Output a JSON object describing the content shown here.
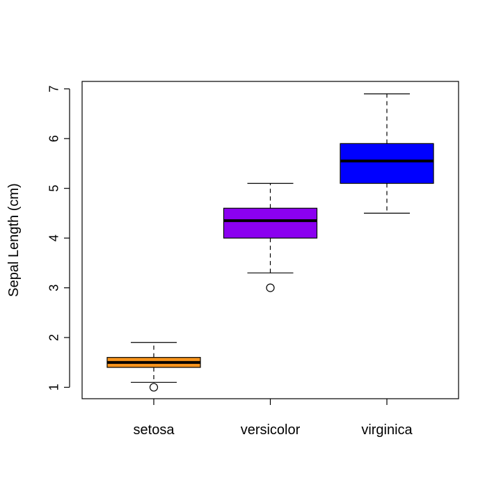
{
  "chart_data": {
    "type": "box",
    "ylabel": "Sepal Length (cm)",
    "xlabel": "",
    "ylim": [
      0.77,
      7.15
    ],
    "yticks": [
      1,
      2,
      3,
      4,
      5,
      6,
      7
    ],
    "ytick_labels": [
      "1",
      "2",
      "3",
      "4",
      "5",
      "6",
      "7"
    ],
    "grid": false,
    "legend": "none",
    "categories": [
      "setosa",
      "versicolor",
      "virginica"
    ],
    "boxes": [
      {
        "category": "setosa",
        "whisker_low": 1.1,
        "q1": 1.4,
        "median": 1.5,
        "q3": 1.6,
        "whisker_high": 1.9,
        "outliers": [
          1.0
        ],
        "color": "#F7941D"
      },
      {
        "category": "versicolor",
        "whisker_low": 3.3,
        "q1": 4.0,
        "median": 4.35,
        "q3": 4.6,
        "whisker_high": 5.1,
        "outliers": [
          3.0
        ],
        "color": "#8B00F0"
      },
      {
        "category": "virginica",
        "whisker_low": 4.5,
        "q1": 5.1,
        "median": 5.55,
        "q3": 5.9,
        "whisker_high": 6.9,
        "outliers": [],
        "color": "#0000FF"
      }
    ]
  }
}
